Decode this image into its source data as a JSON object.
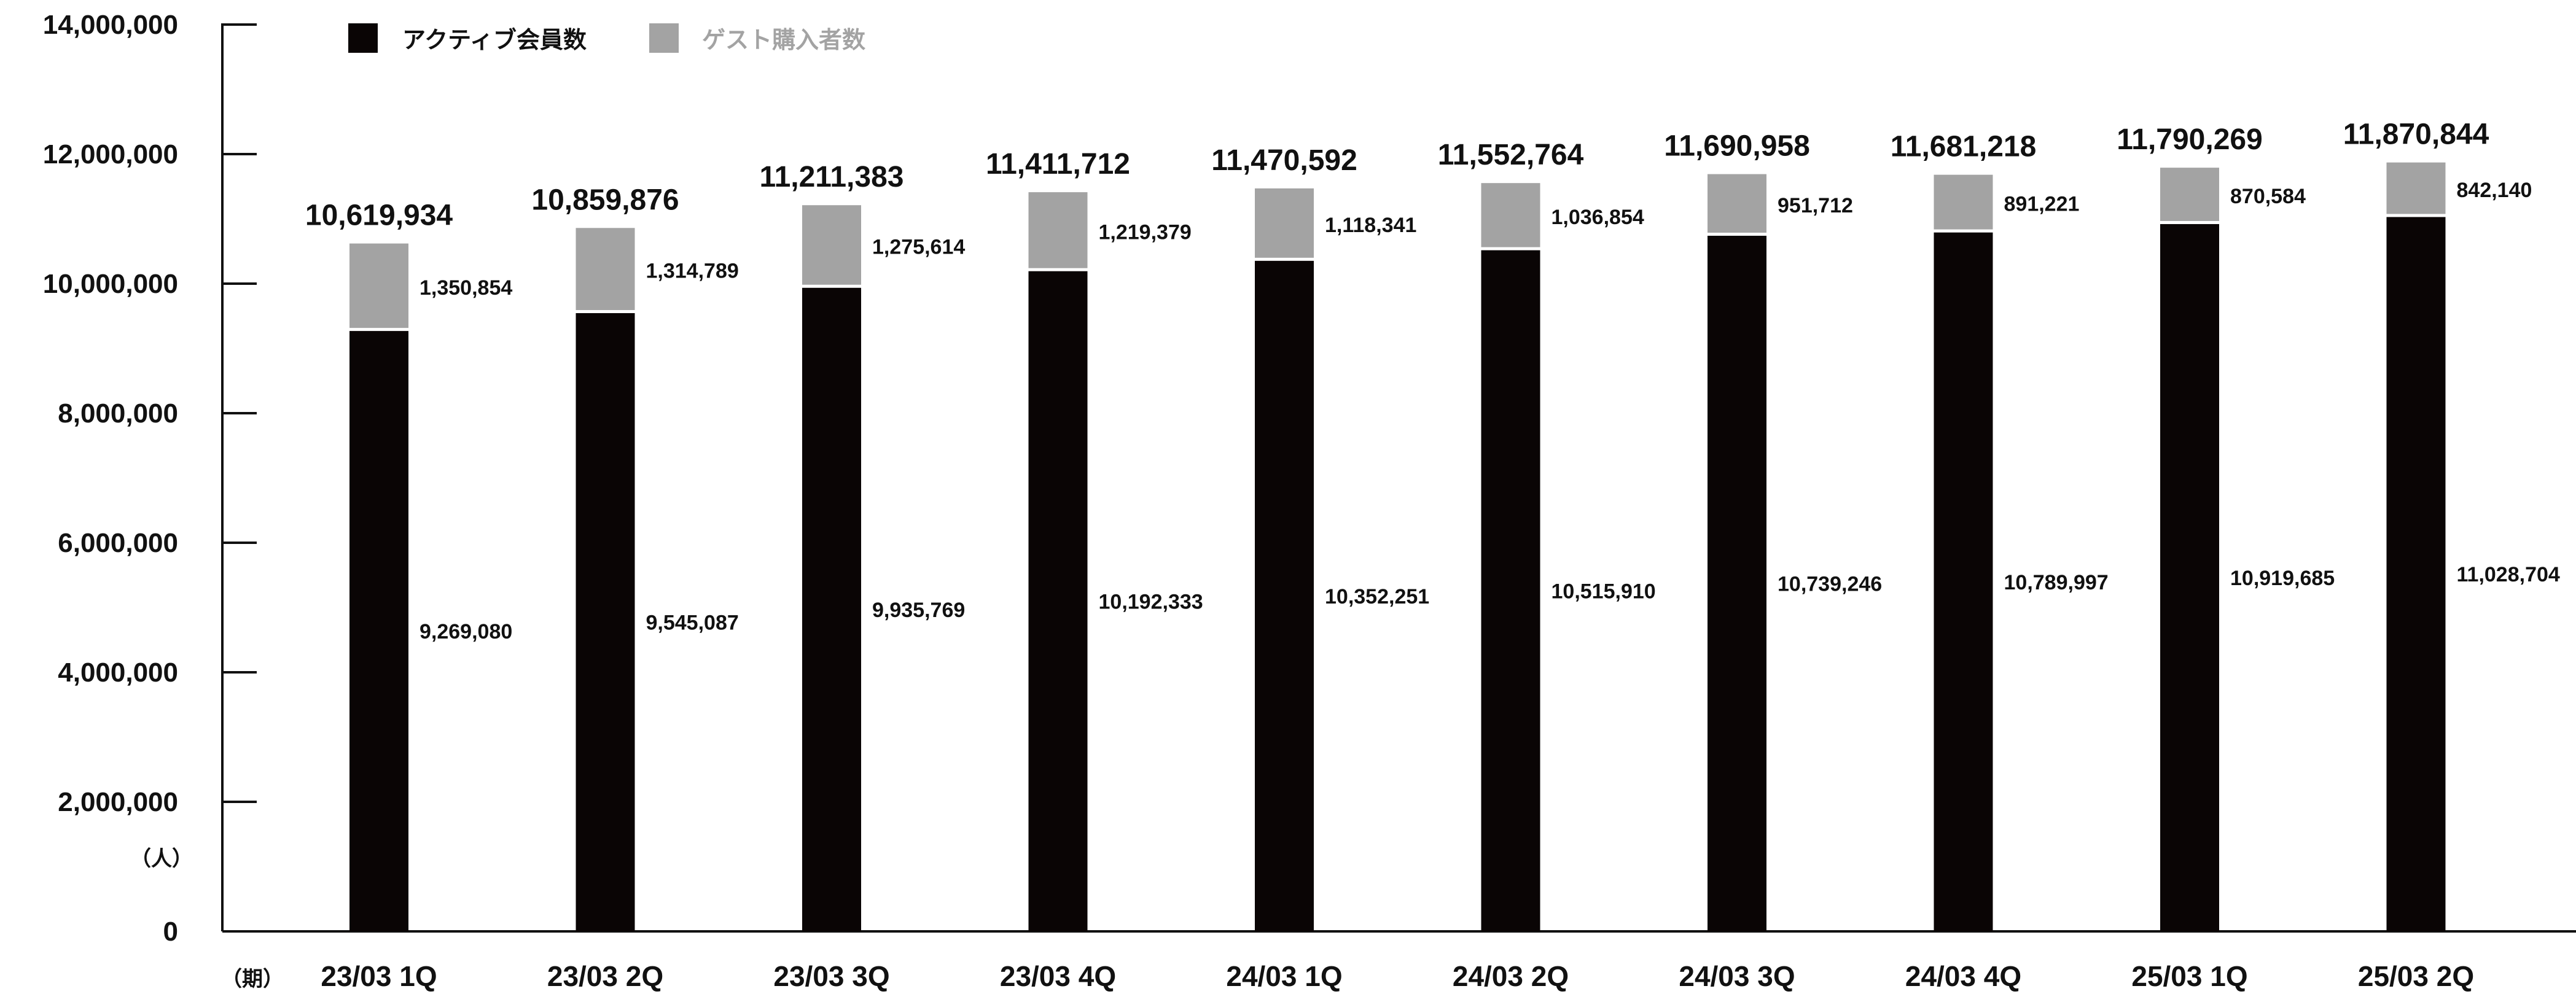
{
  "chart_data": {
    "type": "bar",
    "stacked": true,
    "categories": [
      "23/03 1Q",
      "23/03 2Q",
      "23/03 3Q",
      "23/03 4Q",
      "24/03 1Q",
      "24/03 2Q",
      "24/03 3Q",
      "24/03 4Q",
      "25/03 1Q",
      "25/03 2Q"
    ],
    "series": [
      {
        "name": "アクティブ会員数",
        "color": "#0a0505",
        "values": [
          9269080,
          9545087,
          9935769,
          10192333,
          10352251,
          10515910,
          10739246,
          10789997,
          10919685,
          11028704
        ],
        "labels": [
          "9,269,080",
          "9,545,087",
          "9,935,769",
          "10,192,333",
          "10,352,251",
          "10,515,910",
          "10,739,246",
          "10,789,997",
          "10,919,685",
          "11,028,704"
        ]
      },
      {
        "name": "ゲスト購入者数",
        "color": "#a3a3a3",
        "values": [
          1350854,
          1314789,
          1275614,
          1219379,
          1118341,
          1036854,
          951712,
          891221,
          870584,
          842140
        ],
        "labels": [
          "1,350,854",
          "1,314,789",
          "1,275,614",
          "1,219,379",
          "1,118,341",
          "1,036,854",
          "951,712",
          "891,221",
          "870,584",
          "842,140"
        ]
      }
    ],
    "totals": [
      "10,619,934",
      "10,859,876",
      "11,211,383",
      "11,411,712",
      "11,470,592",
      "11,552,764",
      "11,690,958",
      "11,681,218",
      "11,790,269",
      "11,870,844"
    ],
    "ylim": [
      0,
      14000000
    ],
    "yticks": [
      "0",
      "2,000,000",
      "4,000,000",
      "6,000,000",
      "8,000,000",
      "10,000,000",
      "12,000,000",
      "14,000,000"
    ],
    "y_unit": "（人）",
    "x_unit": "（期）",
    "legend_position": "top-left",
    "grid": false
  }
}
